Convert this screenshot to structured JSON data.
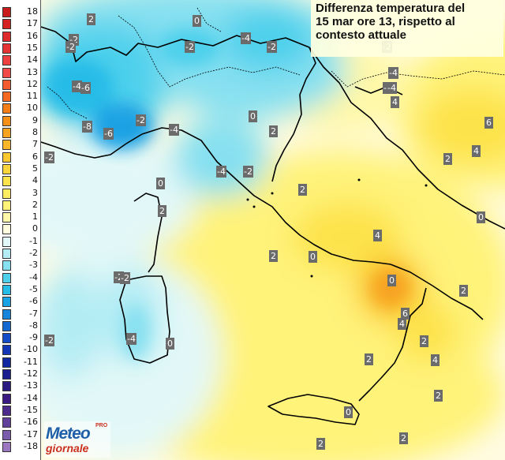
{
  "title_lines": [
    "Differenza temperatura del",
    "15 mar ore 13, rispetto al",
    "contesto attuale"
  ],
  "legend": [
    {
      "label": "18",
      "color": "#c81b1b"
    },
    {
      "label": "17",
      "color": "#d42222"
    },
    {
      "label": "16",
      "color": "#de2a2a"
    },
    {
      "label": "15",
      "color": "#e63434"
    },
    {
      "label": "14",
      "color": "#ee4040"
    },
    {
      "label": "13",
      "color": "#f24a48"
    },
    {
      "label": "12",
      "color": "#f45a30"
    },
    {
      "label": "11",
      "color": "#f56a20"
    },
    {
      "label": "10",
      "color": "#f57d18"
    },
    {
      "label": "9",
      "color": "#f69018"
    },
    {
      "label": "8",
      "color": "#f7a320"
    },
    {
      "label": "7",
      "color": "#f9b628"
    },
    {
      "label": "6",
      "color": "#fbc830"
    },
    {
      "label": "5",
      "color": "#fcd63c"
    },
    {
      "label": "4",
      "color": "#fde34c"
    },
    {
      "label": "3",
      "color": "#feed60"
    },
    {
      "label": "2",
      "color": "#fff37a"
    },
    {
      "label": "1",
      "color": "#fff8a8"
    },
    {
      "label": "0",
      "color": "#fffce0"
    },
    {
      "label": "-1",
      "color": "#e2f8f8"
    },
    {
      "label": "-2",
      "color": "#b4ecf4"
    },
    {
      "label": "-3",
      "color": "#86e0f0"
    },
    {
      "label": "-4",
      "color": "#4ed0ec"
    },
    {
      "label": "-5",
      "color": "#26bce8"
    },
    {
      "label": "-6",
      "color": "#1aa2e4"
    },
    {
      "label": "-7",
      "color": "#1686dc"
    },
    {
      "label": "-8",
      "color": "#1468d2"
    },
    {
      "label": "-9",
      "color": "#124cc6"
    },
    {
      "label": "-10",
      "color": "#1236b6"
    },
    {
      "label": "-11",
      "color": "#1228a0"
    },
    {
      "label": "-12",
      "color": "#1c1e90"
    },
    {
      "label": "-13",
      "color": "#2a1a82"
    },
    {
      "label": "-14",
      "color": "#3a1a82"
    },
    {
      "label": "-15",
      "color": "#4c2a8c"
    },
    {
      "label": "-16",
      "color": "#60409a"
    },
    {
      "label": "-17",
      "color": "#7a5aaa"
    },
    {
      "label": "-18",
      "color": "#9c78c0"
    }
  ],
  "map_markers": [
    {
      "v": "2"
    },
    {
      "v": "0"
    },
    {
      "v": "-2"
    },
    {
      "v": "-4"
    },
    {
      "v": "-2"
    },
    {
      "v": "-2"
    },
    {
      "v": "-2"
    },
    {
      "v": "-4"
    },
    {
      "v": "-4"
    },
    {
      "v": "-6"
    },
    {
      "v": "-8"
    },
    {
      "v": "-6"
    },
    {
      "v": "-2"
    },
    {
      "v": "-4"
    },
    {
      "v": "-2"
    },
    {
      "v": "0"
    },
    {
      "v": "2"
    },
    {
      "v": "-2"
    },
    {
      "v": "-4"
    },
    {
      "v": "-2"
    },
    {
      "v": "0"
    },
    {
      "v": "2"
    },
    {
      "v": "2"
    },
    {
      "v": "-2"
    },
    {
      "v": "2"
    },
    {
      "v": "0"
    },
    {
      "v": "-2"
    },
    {
      "v": "-4"
    },
    {
      "v": "0"
    },
    {
      "v": "-2"
    },
    {
      "v": "-4"
    },
    {
      "v": "-2"
    },
    {
      "v": "4"
    },
    {
      "v": "6"
    },
    {
      "v": "4"
    },
    {
      "v": "2"
    },
    {
      "v": "0"
    },
    {
      "v": "4"
    },
    {
      "v": "2"
    },
    {
      "v": "6"
    },
    {
      "v": "4"
    },
    {
      "v": "2"
    },
    {
      "v": "4"
    },
    {
      "v": "2"
    },
    {
      "v": "2"
    },
    {
      "v": "0"
    },
    {
      "v": "2"
    },
    {
      "v": "2"
    },
    {
      "v": "0"
    }
  ],
  "logo": {
    "line1": "Meteo",
    "line2": "giornale",
    "pro": "PRO"
  }
}
